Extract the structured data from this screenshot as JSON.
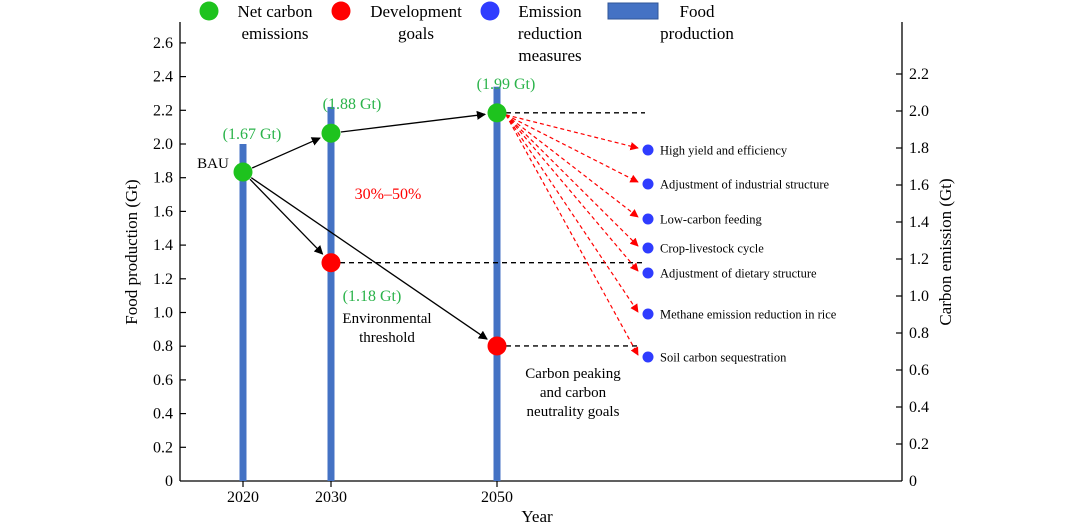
{
  "chart_data": {
    "type": "scatter",
    "title": "",
    "xlabel": "Year",
    "ylabel_left": "Food production (Gt)",
    "ylabel_right": "Carbon emission (Gt)",
    "x_ticks": [
      "2020",
      "2030",
      "2050"
    ],
    "left_axis": {
      "range": [
        0,
        2.7
      ],
      "ticks": [
        0,
        0.2,
        0.4,
        0.6,
        0.8,
        1.0,
        1.2,
        1.4,
        1.6,
        1.8,
        2.0,
        2.2,
        2.4,
        2.6
      ],
      "tick_labels": [
        "0",
        "0.2",
        "0.4",
        "0.6",
        "0.8",
        "1.0",
        "1.2",
        "1.4",
        "1.6",
        "1.8",
        "2.0",
        "2.2",
        "2.4",
        "2.6"
      ]
    },
    "right_axis": {
      "range": [
        0,
        2.4
      ],
      "ticks": [
        0,
        0.2,
        0.4,
        0.6,
        0.8,
        1.0,
        1.2,
        1.4,
        1.6,
        1.8,
        2.0,
        2.2
      ],
      "tick_labels": [
        "0",
        "0.2",
        "0.4",
        "0.6",
        "0.8",
        "1.0",
        "1.2",
        "1.4",
        "1.6",
        "1.8",
        "2.0",
        "2.2"
      ]
    },
    "legend": [
      {
        "key": "net",
        "label_lines": [
          "Net carbon",
          "emissions"
        ],
        "marker": "circle",
        "color": "#1ec31e"
      },
      {
        "key": "goals",
        "label_lines": [
          "Development",
          "goals"
        ],
        "marker": "circle",
        "color": "#ff0000"
      },
      {
        "key": "measures",
        "label_lines": [
          "Emission",
          "reduction",
          "measures"
        ],
        "marker": "circle",
        "color": "#2f3cff"
      },
      {
        "key": "food",
        "label_lines": [
          "Food",
          "production"
        ],
        "marker": "bar",
        "color": "#4472c4"
      }
    ],
    "food_production": [
      {
        "year": "2020",
        "value": 2.0
      },
      {
        "year": "2030",
        "value": 2.22
      },
      {
        "year": "2050",
        "value": 2.34
      }
    ],
    "net_carbon_emissions": [
      {
        "year": "2020",
        "value": 1.67,
        "label": "(1.67 Gt)"
      },
      {
        "year": "2030",
        "value": 1.88,
        "label": "(1.88 Gt)"
      },
      {
        "year": "2050",
        "value": 1.99,
        "label": "(1.99 Gt)"
      }
    ],
    "development_goals": [
      {
        "year": "2030",
        "value": 1.18,
        "label": "(1.18 Gt)",
        "note_lines": [
          "Environmental",
          "threshold"
        ]
      },
      {
        "year": "2050",
        "value": 0.73,
        "label": "",
        "note_lines": [
          "Carbon peaking",
          "and carbon",
          "neutrality goals"
        ]
      }
    ],
    "bau_label": "BAU",
    "reduction_label": "30%–50%",
    "emission_reduction_measures": [
      "High yield and efficiency",
      "Adjustment of industrial structure",
      "Low-carbon feeding",
      "Crop-livestock cycle",
      "Adjustment of dietary structure",
      "Methane emission reduction in rice",
      "Soil carbon sequestration"
    ],
    "colors": {
      "green": "#1ec31e",
      "red": "#ff0000",
      "blue_marker": "#2f3cff",
      "bar": "#4472c4",
      "label_green": "#2ab34a"
    }
  }
}
